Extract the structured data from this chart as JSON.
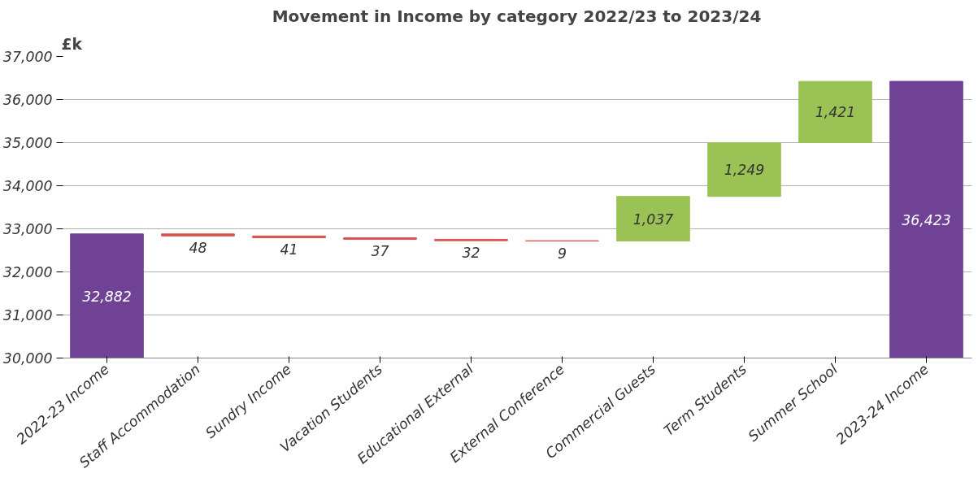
{
  "chart_data": {
    "type": "bar",
    "title": "Movement in Income by category 2022/23 to 2023/24",
    "ylabel": "£k",
    "categories": [
      "2022-23 Income",
      "Staff Accommodation",
      "Sundry Income",
      "Vacation Students",
      "Educational External",
      "External Conference",
      "Commercial Guests",
      "Term Students",
      "Summer School",
      "2023-24 Income"
    ],
    "values": [
      32882,
      -48,
      -41,
      -37,
      -32,
      -9,
      1037,
      1249,
      1421,
      36423
    ],
    "base": [
      null,
      32882,
      32834,
      32793,
      32756,
      32724,
      32715,
      33752,
      35001,
      null
    ],
    "colors": [
      "#6f4296",
      "#d9534f",
      "#d9534f",
      "#d9534f",
      "#d9534f",
      "#d9534f",
      "#9bc255",
      "#9bc255",
      "#9bc255",
      "#6f4296"
    ],
    "value_labels": [
      "32,882",
      "48",
      "41",
      "37",
      "32",
      "9",
      "1,037",
      "1,249",
      "1,421",
      "36,423"
    ],
    "ylim": [
      30000,
      37000
    ],
    "yticks": [
      {
        "value": 30000,
        "label": "30,000"
      },
      {
        "value": 31000,
        "label": "31,000"
      },
      {
        "value": 32000,
        "label": "32,000"
      },
      {
        "value": 33000,
        "label": "33,000"
      },
      {
        "value": 34000,
        "label": "34,000"
      },
      {
        "value": 35000,
        "label": "35,000"
      },
      {
        "value": 36000,
        "label": "36,000"
      },
      {
        "value": 37000,
        "label": "37,000"
      }
    ],
    "grid": "y"
  }
}
